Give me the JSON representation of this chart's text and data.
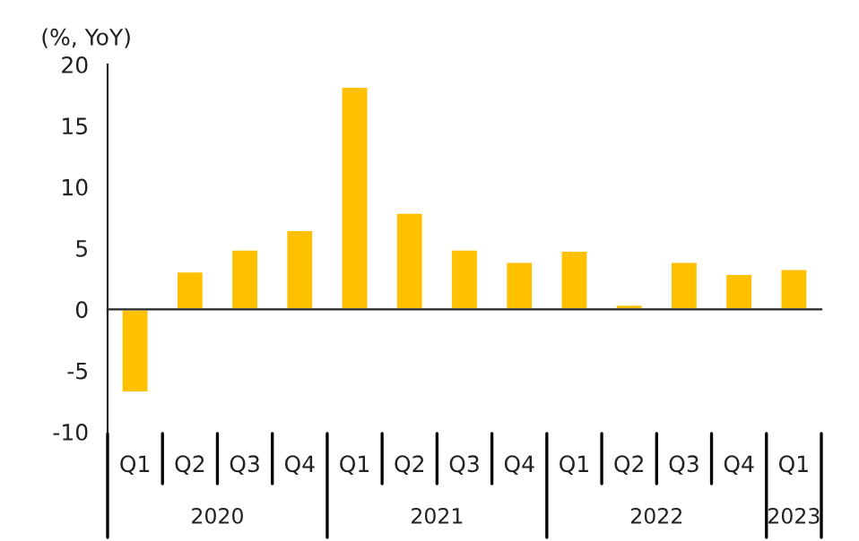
{
  "chart_data": {
    "type": "bar",
    "ylabel": "(%, YoY)",
    "categories": [
      "Q1",
      "Q2",
      "Q3",
      "Q4",
      "Q1",
      "Q2",
      "Q3",
      "Q4",
      "Q1",
      "Q2",
      "Q3",
      "Q4",
      "Q1"
    ],
    "annotations": [
      "2020",
      "2021",
      "2022",
      "2023"
    ],
    "values": [
      -6.8,
      3.1,
      4.9,
      6.5,
      18.2,
      7.9,
      4.9,
      3.9,
      4.8,
      0.4,
      3.9,
      2.9,
      3.3
    ],
    "color": "#ffc000",
    "ylim": [
      -10,
      20
    ],
    "yticks": [
      -10,
      -5,
      0,
      5,
      10,
      15,
      20
    ]
  }
}
